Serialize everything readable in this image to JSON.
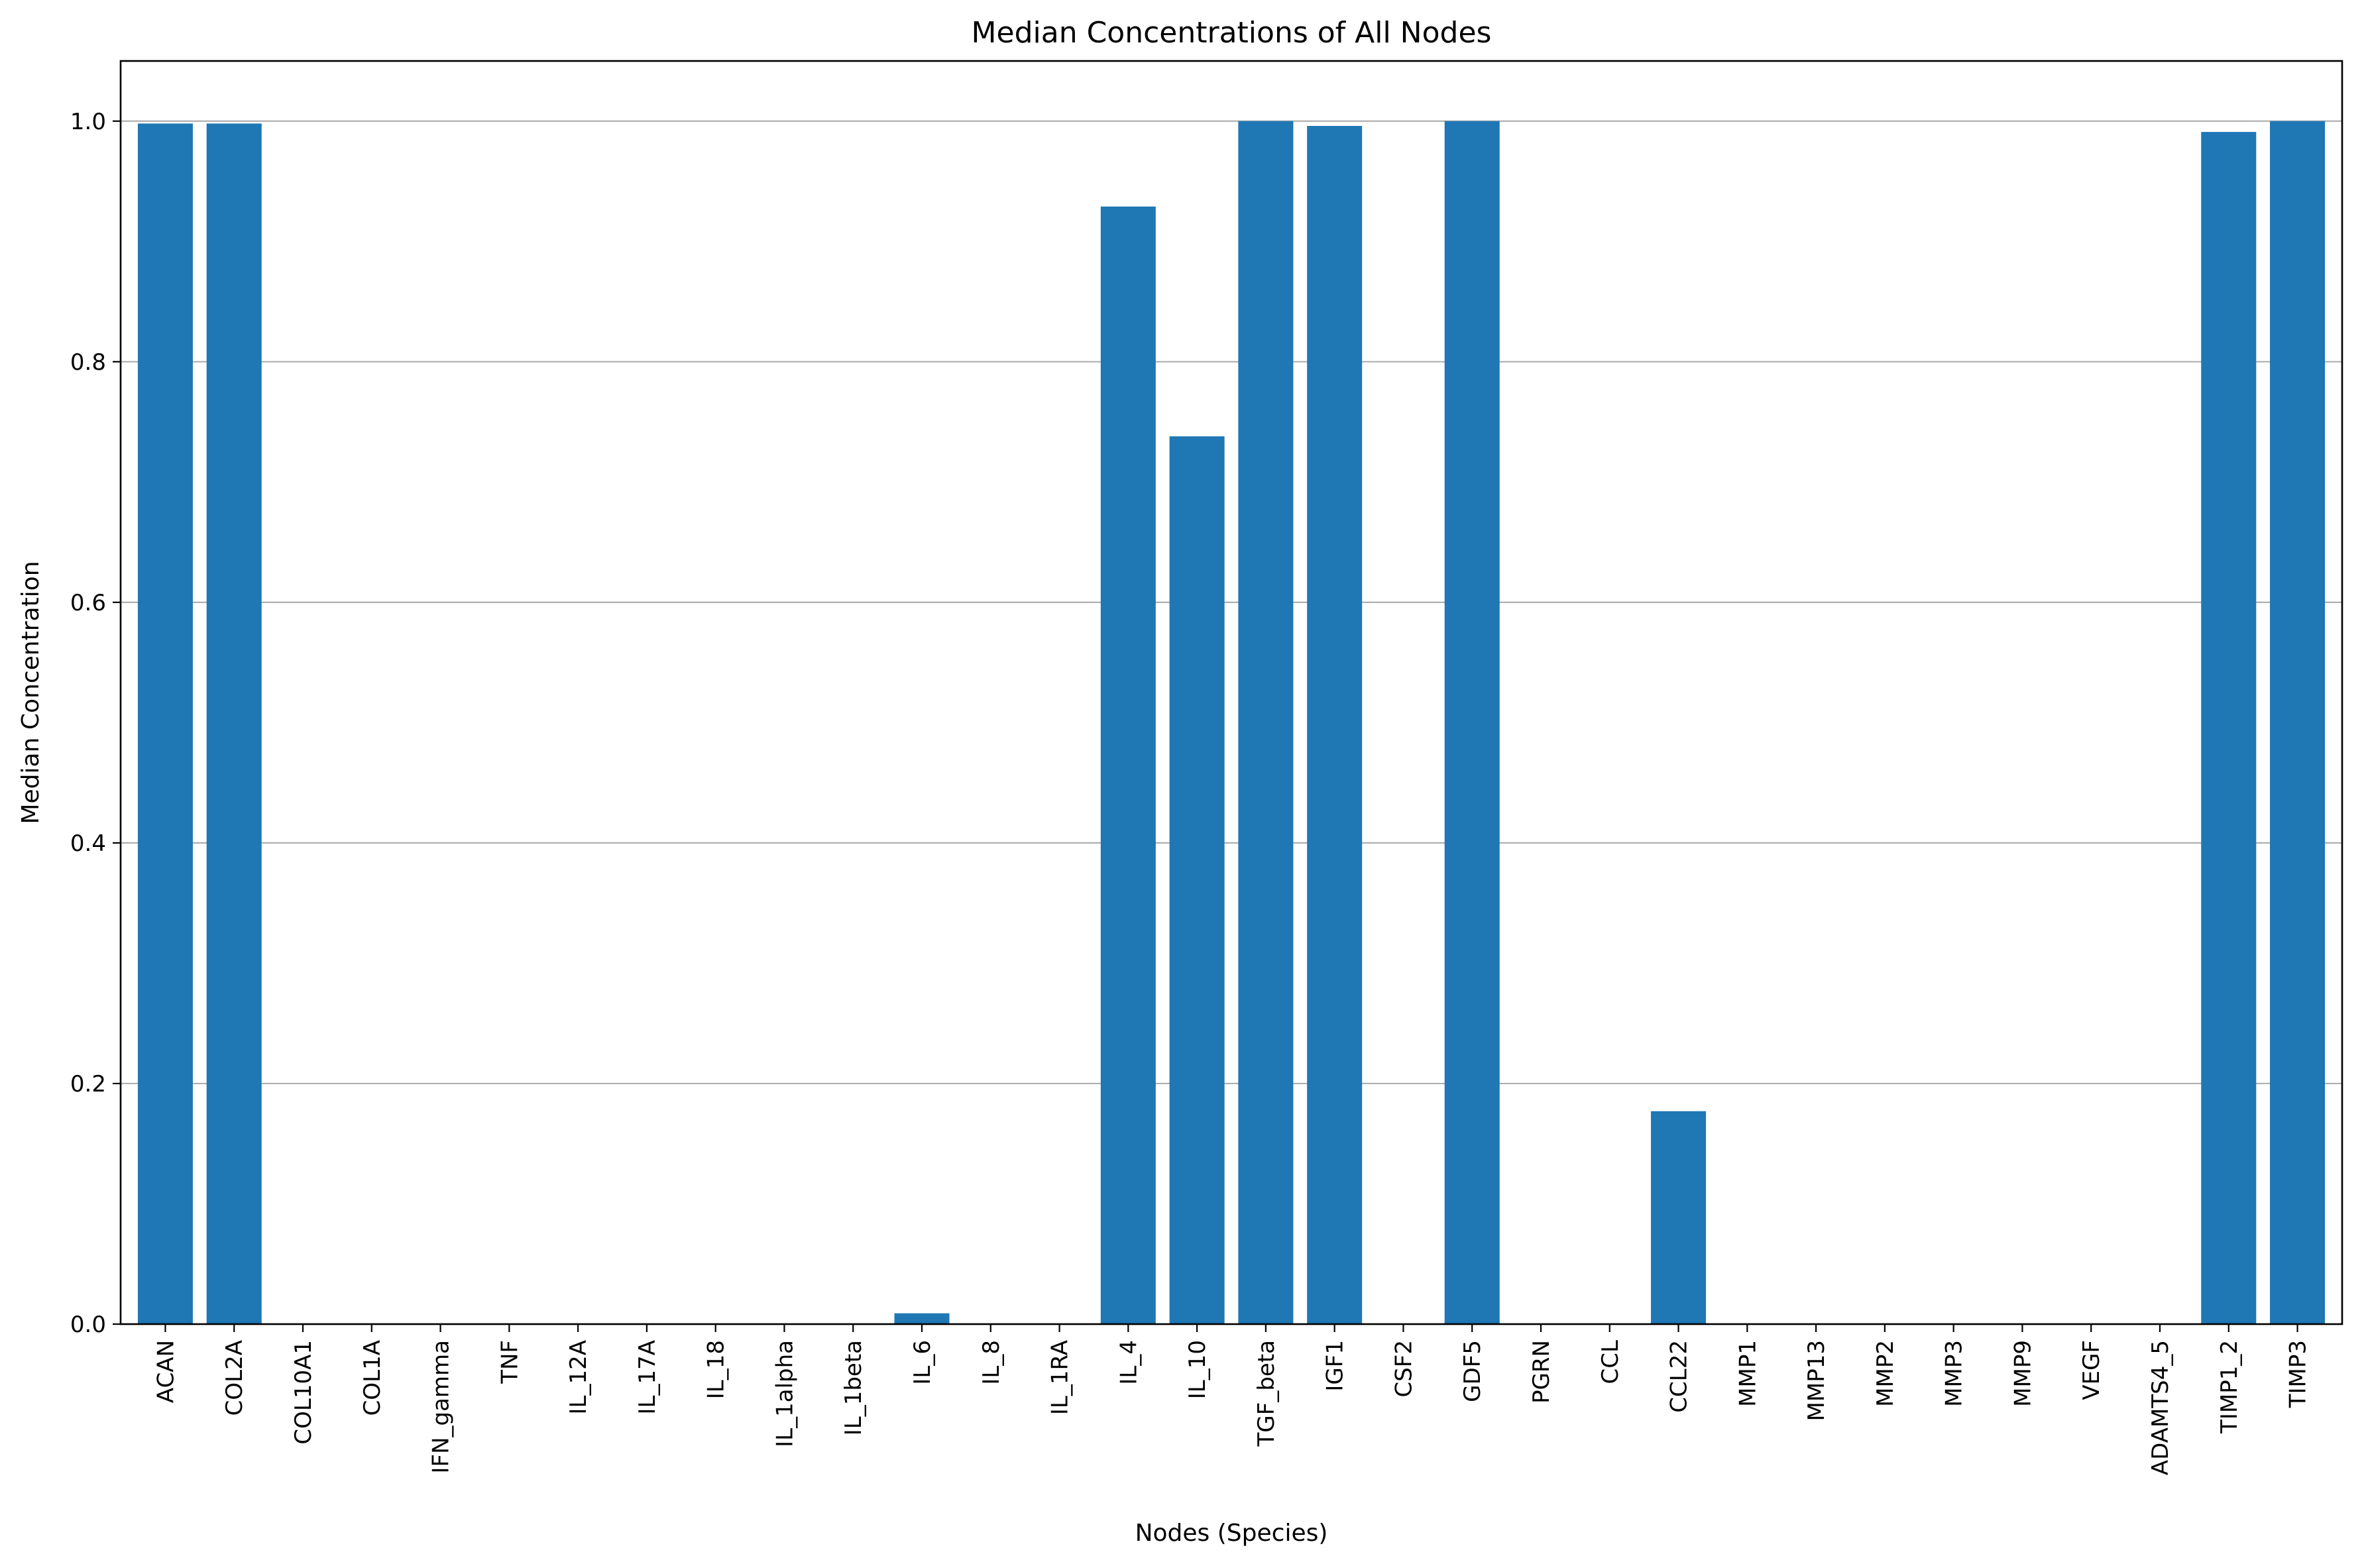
{
  "chart_data": {
    "type": "bar",
    "title": "Median Concentrations of All Nodes",
    "xlabel": "Nodes (Species)",
    "ylabel": "Median Concentration",
    "ylim": [
      0,
      1.05
    ],
    "yticks": [
      0.0,
      0.2,
      0.4,
      0.6,
      0.8,
      1.0
    ],
    "ytick_labels": [
      "0.0",
      "0.2",
      "0.4",
      "0.6",
      "0.8",
      "1.0"
    ],
    "grid": "y-major",
    "legend": "none",
    "bar_color": "#1f77b4",
    "categories": [
      "ACAN",
      "COL2A",
      "COL10A1",
      "COL1A",
      "IFN_gamma",
      "TNF",
      "IL_12A",
      "IL_17A",
      "IL_18",
      "IL_1alpha",
      "IL_1beta",
      "IL_6",
      "IL_8",
      "IL_1RA",
      "IL_4",
      "IL_10",
      "TGF_beta",
      "IGF1",
      "CSF2",
      "GDF5",
      "PGRN",
      "CCL",
      "CCL22",
      "MMP1",
      "MMP13",
      "MMP2",
      "MMP3",
      "MMP9",
      "VEGF",
      "ADAMTS4_5",
      "TIMP1_2",
      "TIMP3"
    ],
    "values": [
      0.998,
      0.998,
      0.0,
      0.0,
      0.0,
      0.0,
      0.0,
      0.0,
      0.0,
      0.0,
      0.0,
      0.009,
      0.0,
      0.0,
      0.929,
      0.738,
      1.0,
      0.996,
      0.0,
      1.0,
      0.0,
      0.0,
      0.177,
      0.0,
      0.0,
      0.0,
      0.0,
      0.0,
      0.0,
      0.0,
      0.991,
      1.0
    ]
  }
}
